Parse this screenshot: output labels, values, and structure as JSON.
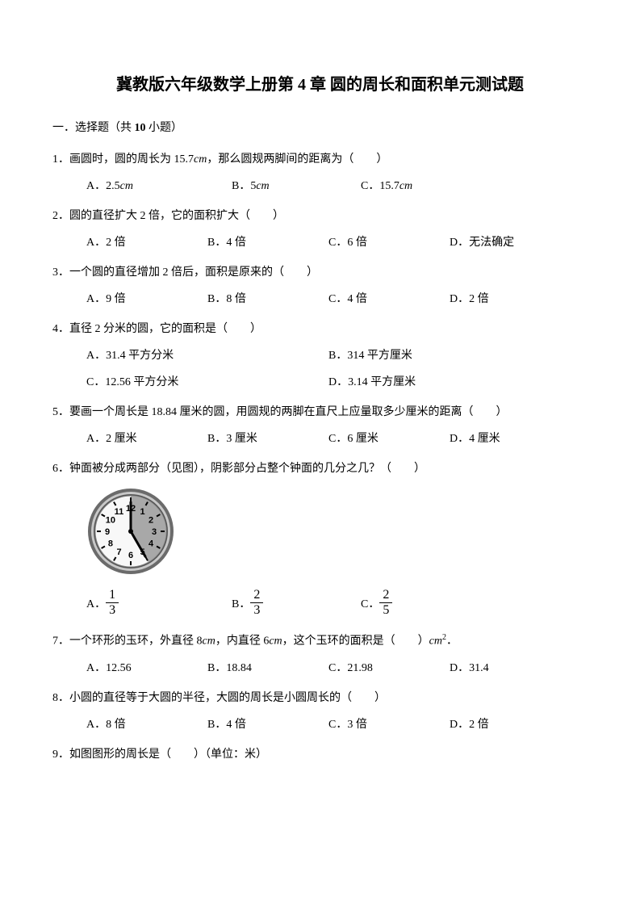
{
  "title_prefix": "冀教版六年级数学上册第 ",
  "title_num": "4",
  "title_suffix": " 章  圆的周长和面积单元测试题",
  "section1_prefix": "一．选择题（共 ",
  "section1_num": "10",
  "section1_suffix": " 小题）",
  "q1": {
    "text_p1": "1．画圆时，圆的周长为 15.7",
    "text_unit": "cm",
    "text_p2": "，那么圆规两脚间的距离为（　　）",
    "a_p": "A．2.5",
    "a_u": "cm",
    "b_p": "B．5",
    "b_u": "cm",
    "c_p": "C．15.7",
    "c_u": "cm"
  },
  "q2": {
    "text": "2．圆的直径扩大 2 倍，它的面积扩大（　　）",
    "a": "A．2 倍",
    "b": "B．4 倍",
    "c": "C．6 倍",
    "d": "D．无法确定"
  },
  "q3": {
    "text": "3．一个圆的直径增加 2 倍后，面积是原来的（　　）",
    "a": "A．9 倍",
    "b": "B．8 倍",
    "c": "C．4 倍",
    "d": "D．2 倍"
  },
  "q4": {
    "text": "4．直径 2 分米的圆，它的面积是（　　）",
    "a": "A．31.4 平方分米",
    "b": "B．314 平方厘米",
    "c": "C．12.56 平方分米",
    "d": "D．3.14 平方厘米"
  },
  "q5": {
    "text": "5．要画一个周长是 18.84 厘米的圆，用圆规的两脚在直尺上应量取多少厘米的距离（　　）",
    "a": "A．2 厘米",
    "b": "B．3 厘米",
    "c": "C．6 厘米",
    "d": "D．4 厘米"
  },
  "q6": {
    "text": "6．钟面被分成两部分（见图），阴影部分占整个钟面的几分之几？（　　）",
    "clock": {
      "outer_color": "#6b6b6b",
      "face_color": "#f8f8f8",
      "shade_color": "#9a9a9a",
      "tick_color": "#000000",
      "hand_color": "#000000",
      "size": 110,
      "numbers": [
        "12",
        "1",
        "2",
        "3",
        "4",
        "5",
        "6",
        "7",
        "8",
        "9",
        "10",
        "11"
      ],
      "shade_start_angle": 0,
      "shade_end_angle": 150
    },
    "a_lbl": "A．",
    "a_num": "1",
    "a_den": "3",
    "b_lbl": "B．",
    "b_num": "2",
    "b_den": "3",
    "c_lbl": "C．",
    "c_num": "2",
    "c_den": "5"
  },
  "q7": {
    "text_p1": "7．一个环形的玉环，外直径 8",
    "u1": "cm",
    "text_p2": "，内直径 6",
    "u2": "cm",
    "text_p3": "，这个玉环的面积是（　　）",
    "u3": "cm",
    "sup": "2",
    "text_p4": "．",
    "a": "A．12.56",
    "b": "B．18.84",
    "c": "C．21.98",
    "d": "D．31.4"
  },
  "q8": {
    "text": "8．小圆的直径等于大圆的半径，大圆的周长是小圆周长的（　　）",
    "a": "A．8 倍",
    "b": "B．4 倍",
    "c": "C．3 倍",
    "d": "D．2 倍"
  },
  "q9": {
    "text": "9．如图图形的周长是（　　）（单位：米）"
  }
}
